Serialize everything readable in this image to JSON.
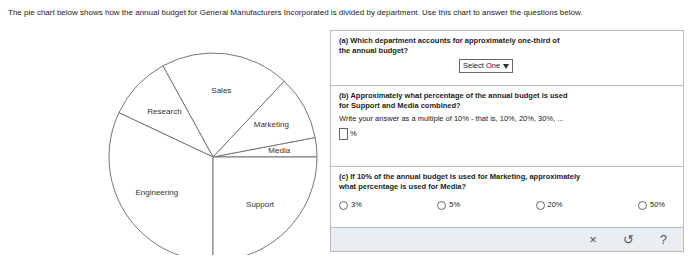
{
  "instructions": "The pie chart below shows how the annual budget for General Manufacturers Incorporated is divided by department. Use this chart to answer the questions below.",
  "chart_data": {
    "type": "pie",
    "categories": [
      "Media",
      "Marketing",
      "Sales",
      "Research",
      "Engineering",
      "Support"
    ],
    "values": [
      3,
      10,
      20,
      10,
      32,
      25
    ]
  },
  "questions": {
    "a": {
      "text": "(a) Which department accounts for approximately one-third of the annual budget?",
      "select": "Select One"
    },
    "b": {
      "text": "(b) Approximately what percentage of the annual budget is used for Support and Media combined?",
      "hint": "Write your answer as a multiple of 10% - that is, 10%, 20%, 30%, ...",
      "unit": "%"
    },
    "c": {
      "text": "(c) If 10% of the annual budget is used for Marketing, approximately what percentage is used for Media?",
      "options": [
        "3%",
        "5%",
        "20%",
        "50%"
      ]
    },
    "buttons": [
      "×",
      "↺",
      "?"
    ]
  }
}
